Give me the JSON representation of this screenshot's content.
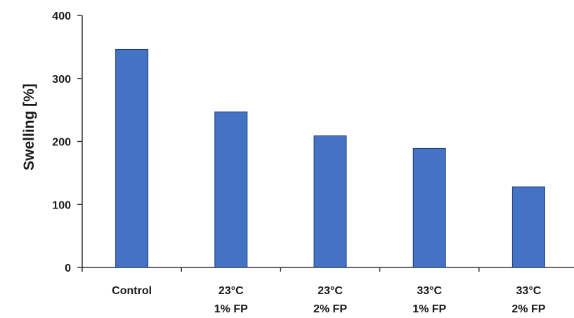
{
  "chart_data": {
    "type": "bar",
    "categories": [
      [
        "Control"
      ],
      [
        "23°C",
        "1% FP"
      ],
      [
        "23°C",
        "2% FP"
      ],
      [
        "33°C",
        "1% FP"
      ],
      [
        "33°C",
        "2% FP"
      ]
    ],
    "values": [
      346,
      247,
      209,
      189,
      128
    ],
    "title": "",
    "xlabel": "",
    "ylabel": "Swelling [%]",
    "ylim": [
      0,
      400
    ],
    "yticks": [
      0,
      100,
      200,
      300,
      400
    ],
    "grid": false,
    "legend": "none",
    "colors": {
      "bar_fill": "#4472C4",
      "bar_stroke": "#1f3f7a",
      "axis": "#333333",
      "text": "#1a1a1a"
    }
  }
}
